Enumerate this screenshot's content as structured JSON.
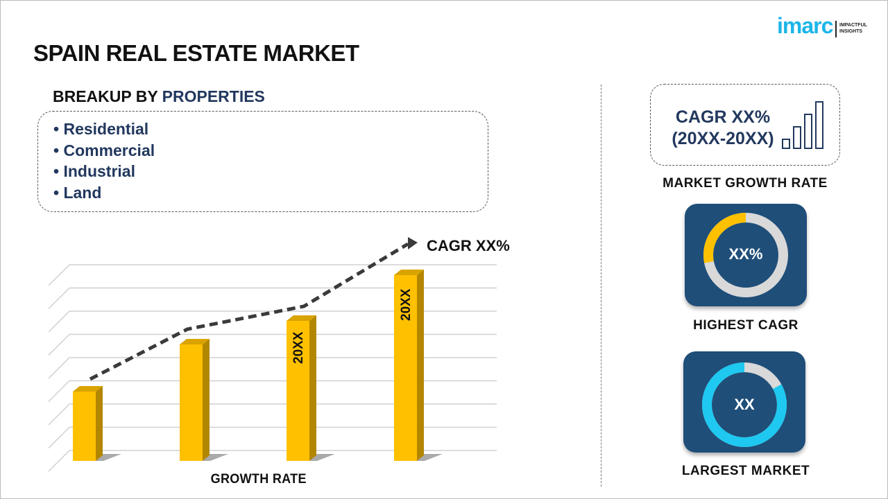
{
  "header": {
    "title": "SPAIN REAL ESTATE MARKET",
    "logo_text": "imarc",
    "logo_tagline_1": "IMPACTFUL",
    "logo_tagline_2": "INSIGHTS"
  },
  "breakup": {
    "prefix": "BREAKUP BY ",
    "highlight": "PROPERTIES",
    "items": [
      "Residential",
      "Commercial",
      "Industrial",
      "Land"
    ]
  },
  "chart": {
    "cagr_label": "CAGR XX%",
    "x_label": "GROWTH RATE",
    "bar_labels": [
      "",
      "",
      "20XX",
      "20XX"
    ],
    "bar_color": "#FFC000"
  },
  "right": {
    "cagr_line1": "CAGR XX%",
    "cagr_line2": "(20XX-20XX)",
    "cagr_caption": "MARKET GROWTH RATE",
    "highest": {
      "value": "XX%",
      "caption": "HIGHEST CAGR",
      "fill_fraction": 0.28,
      "accent": "#FFC000"
    },
    "largest": {
      "value": "XX",
      "caption": "LARGEST MARKET",
      "fill_fraction": 0.83,
      "accent": "#1EC8F0"
    }
  },
  "colors": {
    "navy": "#22385E",
    "tile": "#1F4E79",
    "ring_bg": "#D9D9D9"
  }
}
